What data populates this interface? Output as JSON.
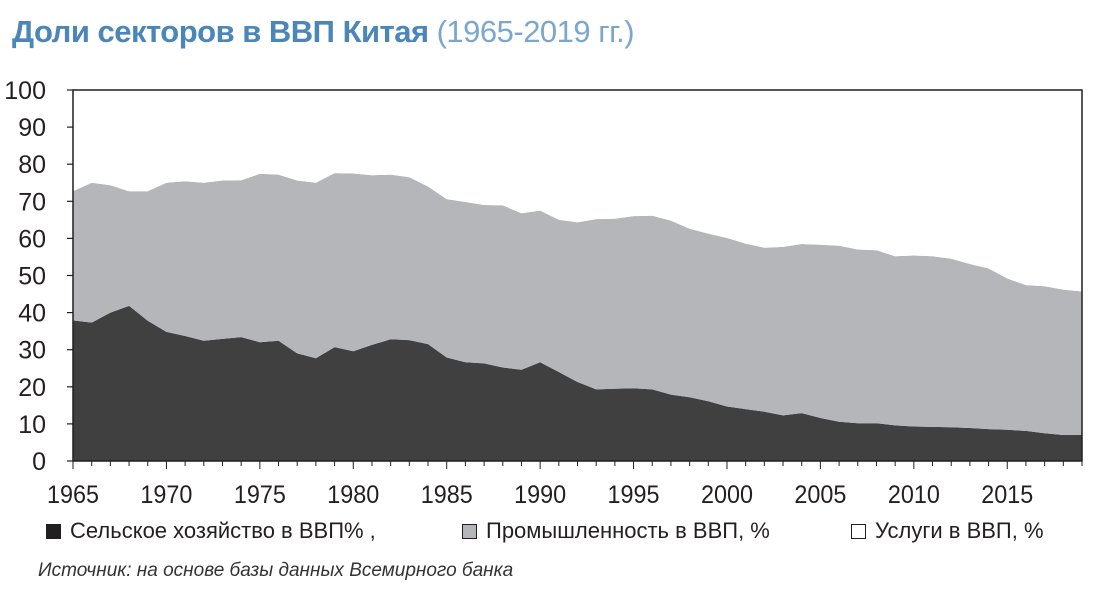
{
  "title": "Доли секторов в ВВП Китая",
  "subtitle": "(1965-2019 гг.)",
  "source": "Источник: на основе базы данных Всемирного банка",
  "colors": {
    "agriculture": "#404041",
    "industry": "#b5b6b9",
    "services": "#ffffff",
    "axis": "#231f20",
    "title": "#4a86b8"
  },
  "chart_data": {
    "type": "area",
    "stacked": true,
    "x": [
      1965,
      1966,
      1967,
      1968,
      1969,
      1970,
      1971,
      1972,
      1973,
      1974,
      1975,
      1976,
      1977,
      1978,
      1979,
      1980,
      1981,
      1982,
      1983,
      1984,
      1985,
      1986,
      1987,
      1988,
      1989,
      1990,
      1991,
      1992,
      1993,
      1994,
      1995,
      1996,
      1997,
      1998,
      1999,
      2000,
      2001,
      2002,
      2003,
      2004,
      2005,
      2006,
      2007,
      2008,
      2009,
      2010,
      2011,
      2012,
      2013,
      2014,
      2015,
      2016,
      2017,
      2018,
      2019
    ],
    "xlim": [
      1965,
      2019
    ],
    "ylim": [
      0,
      100
    ],
    "x_ticks": [
      "1965",
      "1970",
      "1975",
      "1980",
      "1985",
      "1990",
      "1995",
      "2000",
      "2005",
      "2010",
      "2015"
    ],
    "y_ticks": [
      "0",
      "10",
      "20",
      "30",
      "40",
      "50",
      "60",
      "70",
      "80",
      "90",
      "100"
    ],
    "series": [
      {
        "name": "Сельское хозяйство в ВВП% ,",
        "values": [
          37.9,
          37.3,
          40.0,
          41.8,
          37.8,
          34.8,
          33.7,
          32.4,
          32.9,
          33.4,
          32.0,
          32.4,
          29.0,
          27.7,
          30.7,
          29.6,
          31.3,
          32.8,
          32.6,
          31.5,
          27.9,
          26.6,
          26.3,
          25.2,
          24.6,
          26.6,
          24.0,
          21.3,
          19.3,
          19.5,
          19.6,
          19.3,
          17.9,
          17.2,
          16.1,
          14.7,
          14.0,
          13.3,
          12.3,
          12.9,
          11.6,
          10.6,
          10.2,
          10.2,
          9.6,
          9.3,
          9.2,
          9.1,
          8.9,
          8.6,
          8.4,
          8.1,
          7.5,
          7.0,
          7.1
        ]
      },
      {
        "name": "Промышленность в ВВП, %",
        "values": [
          34.8,
          37.7,
          34.3,
          30.9,
          34.9,
          40.2,
          41.7,
          42.6,
          42.7,
          42.3,
          45.4,
          44.8,
          46.6,
          47.3,
          46.9,
          47.9,
          45.7,
          44.4,
          43.9,
          42.5,
          42.7,
          43.2,
          42.7,
          43.7,
          42.2,
          40.9,
          41.0,
          43.0,
          45.9,
          45.8,
          46.4,
          46.8,
          46.9,
          45.4,
          45.2,
          45.4,
          44.6,
          44.2,
          45.4,
          45.6,
          46.7,
          47.4,
          46.8,
          46.6,
          45.6,
          46.1,
          46.0,
          45.4,
          44.2,
          43.3,
          40.8,
          39.3,
          39.6,
          39.2,
          38.6
        ]
      },
      {
        "name": "Услуги в ВВП, %",
        "values": [
          27.3,
          25.0,
          25.7,
          27.3,
          27.3,
          25.0,
          24.6,
          25.0,
          24.4,
          24.3,
          22.6,
          22.8,
          24.4,
          25.0,
          22.4,
          22.5,
          23.0,
          22.8,
          23.5,
          26.0,
          29.4,
          30.2,
          31.0,
          31.1,
          33.2,
          32.5,
          35.0,
          35.7,
          34.8,
          34.7,
          34.0,
          33.9,
          35.2,
          37.4,
          38.7,
          39.9,
          41.4,
          42.5,
          42.3,
          41.5,
          41.7,
          42.0,
          43.0,
          43.2,
          44.8,
          44.6,
          44.8,
          45.5,
          46.9,
          48.1,
          50.8,
          52.6,
          52.9,
          53.8,
          54.3
        ]
      }
    ]
  },
  "legend": [
    {
      "label": "Сельское хозяйство в ВВП% ,",
      "color": "#231f20"
    },
    {
      "label": "Промышленность в ВВП, %",
      "color": "#b5b6b9"
    },
    {
      "label": "Услуги в ВВП, %",
      "color": "#ffffff"
    }
  ]
}
